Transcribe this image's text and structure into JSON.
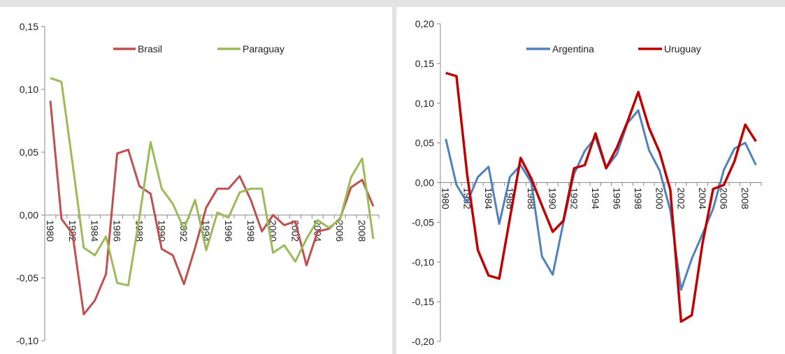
{
  "chart_data": [
    {
      "type": "line",
      "categories": [
        "1980",
        "1981",
        "1982",
        "1983",
        "1984",
        "1985",
        "1986",
        "1987",
        "1988",
        "1989",
        "1990",
        "1991",
        "1992",
        "1993",
        "1994",
        "1995",
        "1996",
        "1997",
        "1998",
        "1999",
        "2000",
        "2001",
        "2002",
        "2003",
        "2004",
        "2005",
        "2006",
        "2007",
        "2008",
        "2009"
      ],
      "x_tick_labels": [
        "1980",
        "1982",
        "1984",
        "1986",
        "1988",
        "1990",
        "1992",
        "1994",
        "1996",
        "1998",
        "2000",
        "2002",
        "2004",
        "2006",
        "2008"
      ],
      "ylim": [
        -0.1,
        0.15
      ],
      "y_ticks": [
        "-0,10",
        "-0,05",
        "0,00",
        "0,05",
        "0,10",
        "0,15"
      ],
      "y_tick_values": [
        -0.1,
        -0.05,
        0.0,
        0.05,
        0.1,
        0.15
      ],
      "grid": false,
      "legend_position": "top",
      "series": [
        {
          "name": "Brasil",
          "color": "#c0504d",
          "values": [
            0.091,
            -0.003,
            -0.015,
            -0.079,
            -0.068,
            -0.047,
            0.049,
            0.052,
            0.023,
            0.017,
            -0.027,
            -0.032,
            -0.055,
            -0.026,
            0.006,
            0.021,
            0.021,
            0.031,
            0.012,
            -0.013,
            0.0,
            -0.008,
            -0.005,
            -0.04,
            -0.013,
            -0.011,
            -0.003,
            0.022,
            0.028,
            0.007
          ]
        },
        {
          "name": "Paraguay",
          "color": "#9bbb59",
          "values": [
            0.109,
            0.106,
            0.041,
            -0.026,
            -0.032,
            -0.017,
            -0.054,
            -0.056,
            -0.002,
            0.058,
            0.021,
            0.009,
            -0.011,
            0.012,
            -0.028,
            0.002,
            -0.002,
            0.018,
            0.021,
            0.021,
            -0.03,
            -0.024,
            -0.037,
            -0.019,
            -0.004,
            -0.01,
            -0.004,
            0.03,
            0.045,
            -0.019
          ]
        }
      ]
    },
    {
      "type": "line",
      "categories": [
        "1980",
        "1981",
        "1982",
        "1983",
        "1984",
        "1985",
        "1986",
        "1987",
        "1988",
        "1989",
        "1990",
        "1991",
        "1992",
        "1993",
        "1994",
        "1995",
        "1996",
        "1997",
        "1998",
        "1999",
        "2000",
        "2001",
        "2002",
        "2003",
        "2004",
        "2005",
        "2006",
        "2007",
        "2008",
        "2009"
      ],
      "x_tick_labels": [
        "1980",
        "1982",
        "1984",
        "1986",
        "1988",
        "1990",
        "1992",
        "1994",
        "1996",
        "1998",
        "2000",
        "2002",
        "2004",
        "2006",
        "2008"
      ],
      "ylim": [
        -0.2,
        0.2
      ],
      "y_ticks": [
        "-0,20",
        "-0,15",
        "-0,10",
        "-0,05",
        "0,00",
        "0,05",
        "0,10",
        "0,15",
        "0,20"
      ],
      "y_tick_values": [
        -0.2,
        -0.15,
        -0.1,
        -0.05,
        0.0,
        0.05,
        0.1,
        0.15,
        0.2
      ],
      "grid": false,
      "legend_position": "top",
      "series": [
        {
          "name": "Argentina",
          "color": "#4f81bd",
          "values": [
            0.055,
            -0.003,
            -0.025,
            0.007,
            0.02,
            -0.052,
            0.007,
            0.022,
            0.0,
            -0.093,
            -0.116,
            -0.05,
            0.011,
            0.04,
            0.057,
            0.018,
            0.036,
            0.075,
            0.091,
            0.041,
            0.015,
            -0.035,
            -0.135,
            -0.096,
            -0.065,
            -0.033,
            0.016,
            0.043,
            0.05,
            0.022
          ]
        },
        {
          "name": "Uruguay",
          "color": "#c00000",
          "values": [
            0.138,
            0.134,
            0.01,
            -0.085,
            -0.117,
            -0.121,
            -0.045,
            0.031,
            0.005,
            -0.029,
            -0.062,
            -0.048,
            0.018,
            0.022,
            0.062,
            0.018,
            0.044,
            0.077,
            0.114,
            0.069,
            0.038,
            -0.009,
            -0.175,
            -0.167,
            -0.077,
            -0.008,
            -0.003,
            0.027,
            0.073,
            0.052
          ]
        }
      ]
    }
  ]
}
